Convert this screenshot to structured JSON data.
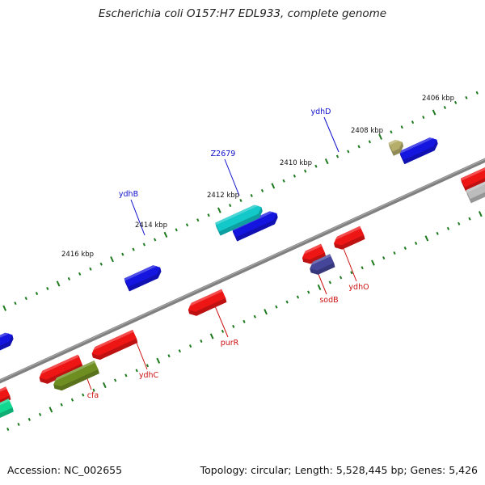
{
  "title": "Escherichia coli O157:H7 EDL933, complete genome",
  "footer": {
    "accession": "Accession: NC_002655",
    "summary": "Topology: circular; Length: 5,528,445 bp; Genes: 5,426"
  },
  "scale_labels": [
    "2406 kbp",
    "2408 kbp",
    "2410 kbp",
    "2412 kbp",
    "2414 kbp",
    "2416 kbp"
  ],
  "gene_labels": {
    "forward": [
      "ydhD",
      "Z2679",
      "ydhB"
    ],
    "reverse": [
      "ydhO",
      "sodB",
      "purR",
      "ydhC",
      "cfa"
    ]
  },
  "colors": {
    "backbone": "#808080",
    "tick": "#1e7a1e",
    "forward_label": "#1010cc",
    "reverse_label": "#cc1010",
    "blue": "#1515e0",
    "red": "#ee1515",
    "cyan": "#12c8c8",
    "olive": "#6f8e22",
    "khaki": "#b5ae6a",
    "slate": "#45459a",
    "grey": "#bcbcbc",
    "spring": "#10d890"
  }
}
